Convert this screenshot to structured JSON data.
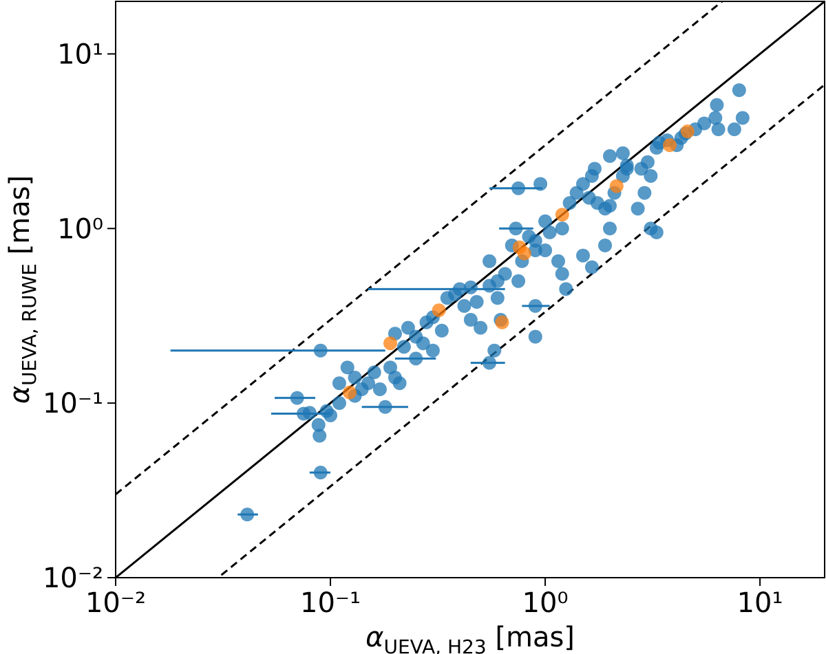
{
  "chart_data": {
    "type": "scatter",
    "xlabel": {
      "symbol": "α",
      "subscript": "UEVA, H23",
      "unit": "[mas]"
    },
    "ylabel": {
      "symbol": "α",
      "subscript": "UEVA, RUWE",
      "unit": "[mas]"
    },
    "xscale": "log",
    "yscale": "log",
    "xlim": [
      0.01,
      20
    ],
    "ylim": [
      0.01,
      20
    ],
    "xticks": [
      {
        "value": 0.01,
        "label": "10⁻²"
      },
      {
        "value": 0.1,
        "label": "10⁻¹"
      },
      {
        "value": 1,
        "label": "10⁰"
      },
      {
        "value": 10,
        "label": "10¹"
      }
    ],
    "yticks": [
      {
        "value": 0.01,
        "label": "10⁻²"
      },
      {
        "value": 0.1,
        "label": "10⁻¹"
      },
      {
        "value": 1,
        "label": "10⁰"
      },
      {
        "value": 10,
        "label": "10¹"
      }
    ],
    "reference_lines": [
      {
        "factor": 1,
        "style": "solid"
      },
      {
        "factor": 3,
        "style": "dashed"
      },
      {
        "factor": 0.3333,
        "style": "dashed"
      }
    ],
    "series": [
      {
        "color": "#1f77b4",
        "x": [
          0.041,
          0.09,
          0.089,
          0.088,
          0.075,
          0.08,
          0.1,
          0.18,
          0.096,
          0.07,
          0.09,
          0.11,
          0.12,
          0.13,
          0.14,
          0.15,
          0.16,
          0.11,
          0.13,
          0.17,
          0.19,
          0.2,
          0.21,
          0.2,
          0.22,
          0.23,
          0.25,
          0.27,
          0.28,
          0.3,
          0.25,
          0.3,
          0.33,
          0.35,
          0.38,
          0.42,
          0.45,
          0.48,
          0.5,
          0.55,
          0.55,
          0.4,
          0.6,
          0.65,
          0.6,
          0.45,
          0.7,
          0.73,
          0.84,
          0.9,
          0.78,
          0.9,
          0.9,
          0.9,
          0.55,
          0.62,
          0.75,
          0.58,
          0.75,
          0.95,
          1.0,
          1.05,
          1.2,
          1.3,
          1.4,
          1.5,
          1.65,
          1.7,
          1.6,
          1.75,
          1.9,
          2.0,
          2.1,
          2.3,
          2.4,
          2.0,
          2.3,
          1.0,
          1.15,
          1.2,
          1.25,
          1.5,
          1.65,
          1.9,
          2.0,
          2.8,
          3.0,
          3.3,
          3.4,
          3.7,
          4.1,
          4.3,
          4.5,
          5.0,
          5.5,
          6.3,
          6.2,
          6.4,
          8.0,
          8.3,
          7.6,
          2.4,
          2.7,
          3.1,
          3.3,
          2.9,
          3.1
        ],
        "y": [
          0.023,
          0.04,
          0.065,
          0.075,
          0.087,
          0.088,
          0.085,
          0.095,
          0.09,
          0.107,
          0.2,
          0.13,
          0.16,
          0.14,
          0.12,
          0.13,
          0.15,
          0.1,
          0.11,
          0.12,
          0.16,
          0.14,
          0.13,
          0.25,
          0.21,
          0.27,
          0.24,
          0.22,
          0.29,
          0.31,
          0.18,
          0.2,
          0.26,
          0.4,
          0.42,
          0.36,
          0.3,
          0.38,
          0.27,
          0.47,
          0.65,
          0.45,
          0.5,
          0.55,
          0.4,
          0.46,
          0.8,
          1.0,
          0.9,
          0.85,
          0.65,
          0.75,
          0.36,
          0.24,
          0.17,
          0.3,
          0.5,
          0.2,
          1.7,
          1.8,
          1.1,
          0.95,
          1.0,
          1.4,
          1.6,
          1.8,
          2.0,
          2.2,
          1.5,
          1.4,
          1.3,
          1.35,
          1.6,
          2.0,
          2.2,
          2.6,
          2.7,
          0.75,
          0.65,
          0.55,
          0.45,
          0.7,
          0.6,
          0.8,
          1.0,
          2.2,
          2.4,
          2.9,
          3.1,
          3.2,
          3.0,
          3.3,
          3.5,
          3.7,
          4.0,
          5.1,
          4.3,
          3.7,
          6.2,
          4.3,
          3.7,
          2.3,
          1.3,
          1.0,
          0.95,
          1.6,
          2.0
        ],
        "xerr": [
          [
            0.004,
            0.005
          ],
          [
            0.01,
            0.01
          ],
          null,
          null,
          [
            0.022,
            0.025
          ],
          null,
          null,
          [
            0.04,
            0.05
          ],
          null,
          [
            0.015,
            0.015
          ],
          [
            0.072,
            0.09
          ],
          null,
          null,
          null,
          null,
          null,
          null,
          null,
          null,
          null,
          null,
          null,
          null,
          null,
          null,
          null,
          null,
          null,
          null,
          null,
          [
            0.05,
            0.06
          ],
          null,
          null,
          null,
          null,
          null,
          null,
          null,
          null,
          null,
          null,
          [
            0.25,
            0.25
          ],
          null,
          null,
          null,
          null,
          null,
          [
            0.12,
            0.15
          ],
          null,
          null,
          null,
          null,
          [
            0.12,
            0.15
          ],
          null,
          [
            0.1,
            0.1
          ],
          null,
          null,
          null,
          [
            0.2,
            0.22
          ],
          null,
          null,
          null,
          null,
          null,
          null,
          null,
          null,
          null,
          null,
          null,
          null,
          null,
          null,
          null,
          null,
          null,
          null,
          null,
          null,
          null,
          null,
          null,
          null,
          null,
          null,
          null,
          null,
          null,
          null,
          null,
          null,
          null,
          null,
          null,
          null,
          null,
          null,
          null,
          null,
          null,
          null,
          null,
          null,
          null,
          null,
          null,
          null,
          null
        ]
      },
      {
        "color": "#ff7f0e",
        "x": [
          0.123,
          0.19,
          0.32,
          0.76,
          0.8,
          0.63,
          1.2,
          2.15,
          3.8,
          4.6
        ],
        "y": [
          0.115,
          0.22,
          0.34,
          0.78,
          0.72,
          0.29,
          1.2,
          1.75,
          3.0,
          3.6
        ]
      }
    ]
  }
}
